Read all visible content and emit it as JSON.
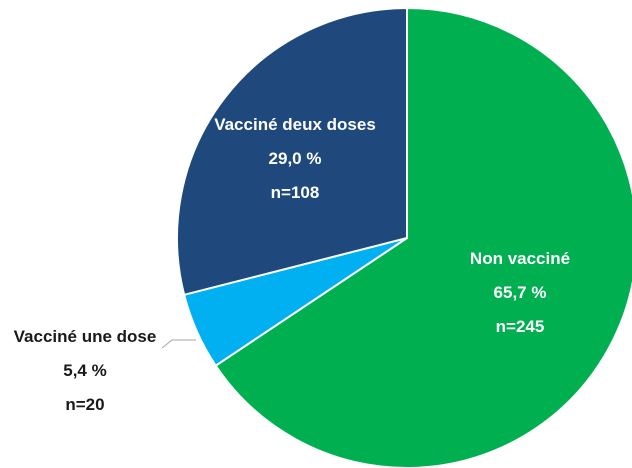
{
  "chart_data": {
    "type": "pie",
    "categories": [
      "Non vacciné",
      "Vacciné une dose",
      "Vacciné deux doses"
    ],
    "values": [
      65.7,
      5.4,
      29.0
    ],
    "value_labels": [
      "65,7 %",
      "5,4 %",
      "29,0 %"
    ],
    "count_labels": [
      "n=245",
      "n=20",
      "n=108"
    ],
    "colors": [
      "#00b050",
      "#00b0f0",
      "#1f497d"
    ],
    "label_colors": [
      "#ffffff",
      "#1a1a1a",
      "#ffffff"
    ]
  }
}
